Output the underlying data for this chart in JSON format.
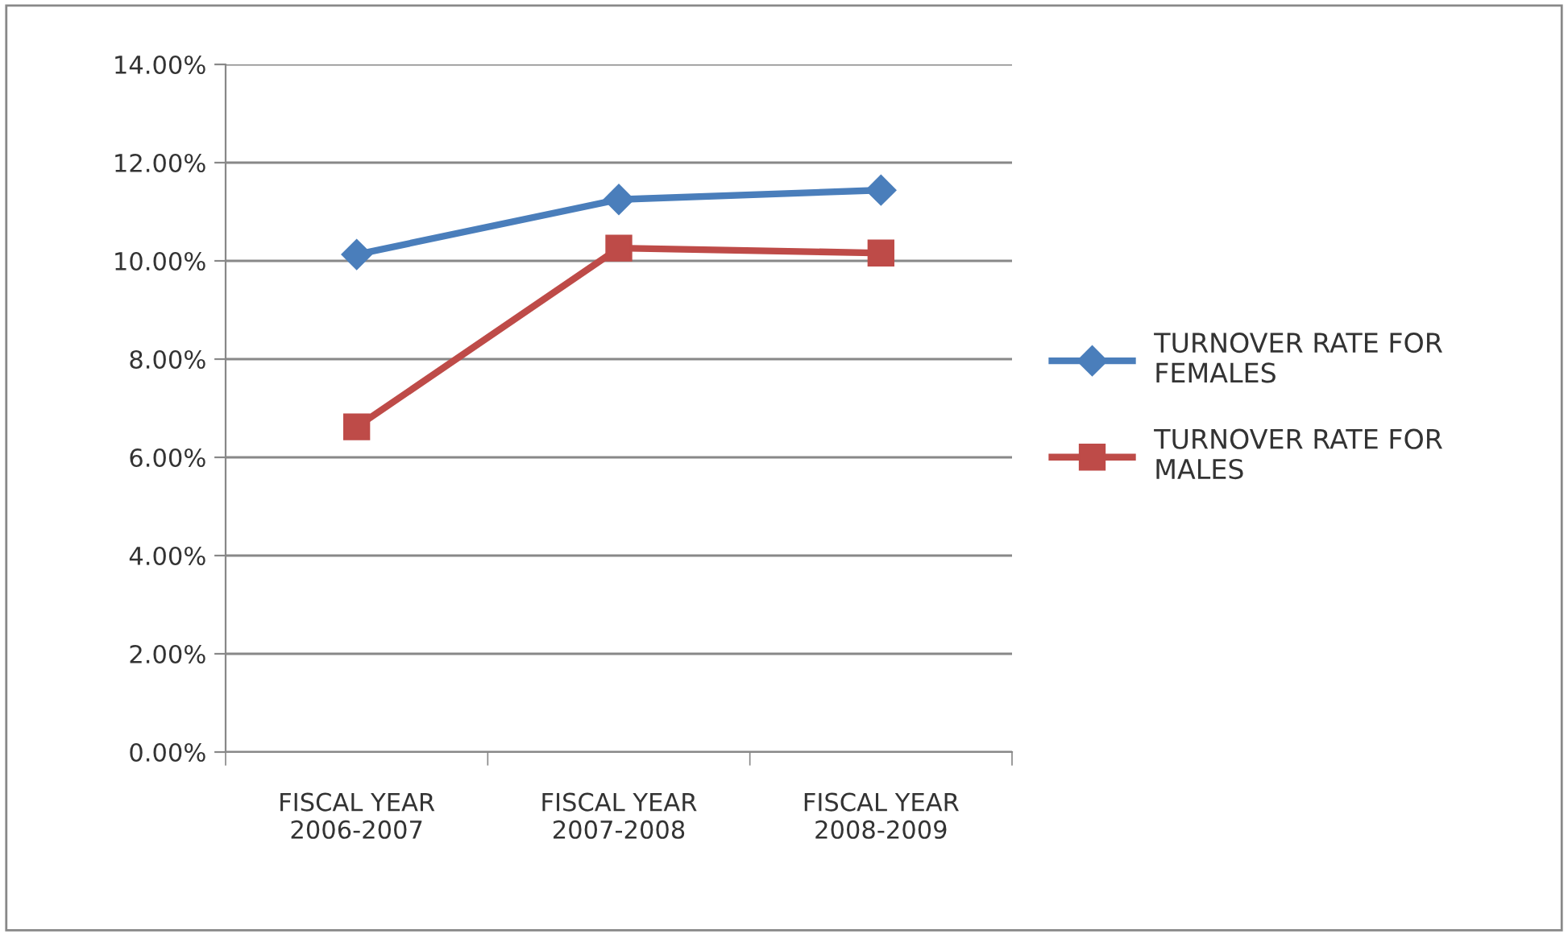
{
  "chart_data": {
    "type": "line",
    "categories": [
      "FISCAL YEAR\n2006-2007",
      "FISCAL YEAR\n2007-2008",
      "FISCAL YEAR\n2008-2009"
    ],
    "series": [
      {
        "name": "TURNOVER RATE FOR\nFEMALES",
        "color": "#4a7ebb",
        "marker": "diamond",
        "values": [
          10.13,
          11.25,
          11.44
        ]
      },
      {
        "name": "TURNOVER RATE FOR\nMALES",
        "color": "#be4b48",
        "marker": "square",
        "values": [
          6.62,
          10.26,
          10.16
        ]
      }
    ],
    "ylim": [
      0,
      14
    ],
    "yticks": [
      {
        "value": 0,
        "label": "0.00%"
      },
      {
        "value": 2,
        "label": "2.00%"
      },
      {
        "value": 4,
        "label": "4.00%"
      },
      {
        "value": 6,
        "label": "6.00%"
      },
      {
        "value": 8,
        "label": "8.00%"
      },
      {
        "value": 10,
        "label": "10.00%"
      },
      {
        "value": 12,
        "label": "12.00%"
      },
      {
        "value": 14,
        "label": "14.00%"
      }
    ],
    "grid": "y",
    "legend": "right",
    "line_style": "solid"
  }
}
